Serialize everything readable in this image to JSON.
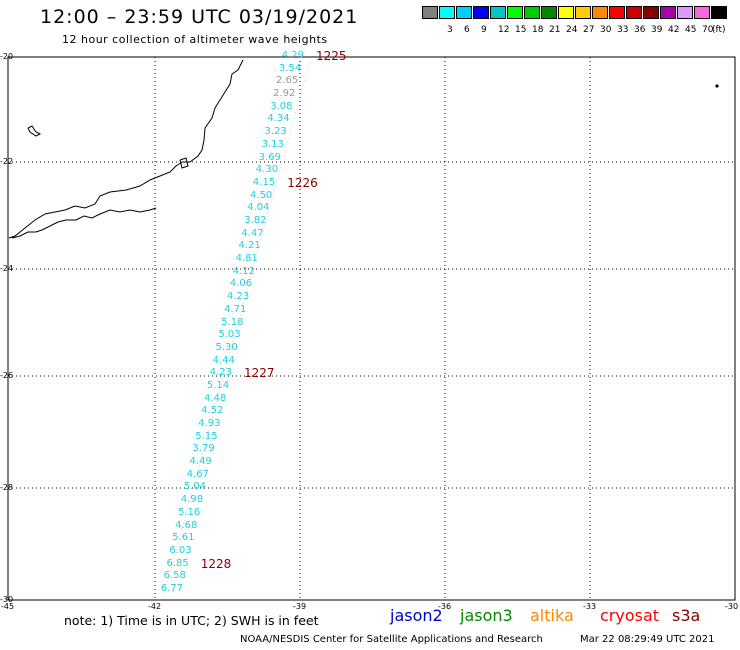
{
  "title": "12:00 – 23:59 UTC 03/19/2021",
  "subtitle": "12 hour collection of altimeter wave heights",
  "color_scale": {
    "unit_label": "(ft)",
    "entries": [
      {
        "label": "",
        "color": "#808080"
      },
      {
        "label": "3",
        "color": "#00ffff"
      },
      {
        "label": "6",
        "color": "#00d0ff"
      },
      {
        "label": "9",
        "color": "#0000ff"
      },
      {
        "label": "12",
        "color": "#00c8c8"
      },
      {
        "label": "15",
        "color": "#00ff00"
      },
      {
        "label": "18",
        "color": "#00cc00"
      },
      {
        "label": "21",
        "color": "#008800"
      },
      {
        "label": "24",
        "color": "#ffff00"
      },
      {
        "label": "27",
        "color": "#ffcc00"
      },
      {
        "label": "30",
        "color": "#ff8800"
      },
      {
        "label": "33",
        "color": "#ff0000"
      },
      {
        "label": "36",
        "color": "#cc0000"
      },
      {
        "label": "39",
        "color": "#880000"
      },
      {
        "label": "42",
        "color": "#aa00aa"
      },
      {
        "label": "45",
        "color": "#dd99ff"
      },
      {
        "label": "70",
        "color": "#ff66dd"
      },
      {
        "label": "",
        "color": "#000000"
      }
    ]
  },
  "map": {
    "lon_ticks": [
      "-45",
      "-42",
      "-39",
      "-36",
      "-33",
      "-30"
    ],
    "lat_ticks": [
      "-20",
      "-22",
      "-24",
      "-26",
      "-28",
      "-30"
    ]
  },
  "wave_heights": [
    "4.29",
    "3.54",
    "2.65",
    "2.92",
    "3.08",
    "4.34",
    "3.23",
    "3.13",
    "3.69",
    "4.30",
    "4.15",
    "4.50",
    "4.04",
    "3.82",
    "4.47",
    "4.21",
    "4.81",
    "4.12",
    "4.06",
    "4.23",
    "4.71",
    "5.18",
    "5.03",
    "5.30",
    "4.44",
    "4.23",
    "5.14",
    "4.48",
    "4.52",
    "4.93",
    "5.15",
    "3.79",
    "4.49",
    "4.67",
    "5.04",
    "4.98",
    "5.16",
    "4.68",
    "5.61",
    "6.03",
    "6.85",
    "6.58",
    "6.77"
  ],
  "gray_indices": [
    2,
    3
  ],
  "rev_labels": [
    "1225",
    "1226",
    "1227",
    "1228"
  ],
  "note": "note: 1) Time is in UTC; 2) SWH is in feet",
  "satellites": [
    {
      "name": "jason2",
      "color": "#0000cc"
    },
    {
      "name": "jason3",
      "color": "#008800"
    },
    {
      "name": "altika",
      "color": "#ff8800"
    },
    {
      "name": "cryosat",
      "color": "#ff0000"
    },
    {
      "name": "s3a",
      "color": "#880000"
    }
  ],
  "credit_left": "NOAA/NESDIS Center for Satellite Applications and Research",
  "credit_right": "Mar 22 08:29:49 UTC 2021"
}
